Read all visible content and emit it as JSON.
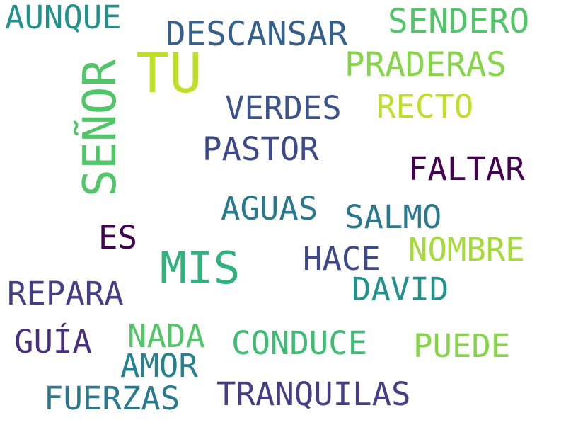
{
  "words": [
    {
      "text": "TU",
      "color": "#bddf26"
    },
    {
      "text": "MIS",
      "color": "#2eb37c"
    },
    {
      "text": "SEÑOR",
      "color": "#52c569"
    },
    {
      "text": "DESCANSAR",
      "color": "#355f8d"
    },
    {
      "text": "SENDERO",
      "color": "#52c569"
    },
    {
      "text": "AUNQUE",
      "color": "#21918c"
    },
    {
      "text": "PRADERAS",
      "color": "#86d549"
    },
    {
      "text": "VERDES",
      "color": "#3b528b"
    },
    {
      "text": "RECTO",
      "color": "#bddf26"
    },
    {
      "text": "PASTOR",
      "color": "#3e4989"
    },
    {
      "text": "FALTAR",
      "color": "#440154"
    },
    {
      "text": "AGUAS",
      "color": "#2a788e"
    },
    {
      "text": "SALMO",
      "color": "#2a788e"
    },
    {
      "text": "ES",
      "color": "#440154"
    },
    {
      "text": "NOMBRE",
      "color": "#a5db36"
    },
    {
      "text": "HACE",
      "color": "#3e4989"
    },
    {
      "text": "REPARA",
      "color": "#433e85"
    },
    {
      "text": "DAVID",
      "color": "#21918c"
    },
    {
      "text": "GUÍA",
      "color": "#472f7d"
    },
    {
      "text": "NADA",
      "color": "#52c569"
    },
    {
      "text": "CONDUCE",
      "color": "#3fbc73"
    },
    {
      "text": "PUEDE",
      "color": "#86d549"
    },
    {
      "text": "AMOR",
      "color": "#26828e"
    },
    {
      "text": "FUERZAS",
      "color": "#2a788e"
    },
    {
      "text": "TRANQUILAS",
      "color": "#433e85"
    }
  ]
}
